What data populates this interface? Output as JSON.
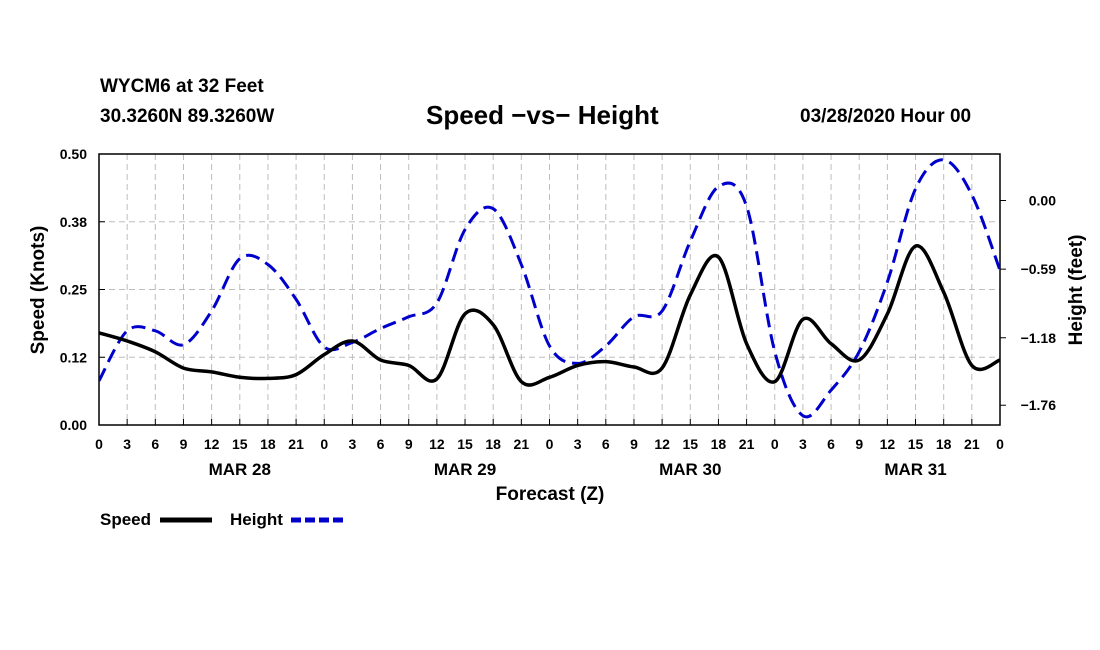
{
  "header": {
    "station": "WYCM6 at 32 Feet",
    "coords": "30.3260N 89.3260W",
    "title": "Speed −vs− Height",
    "datetime": "03/28/2020 Hour 00"
  },
  "chart_data": {
    "type": "line",
    "title": "Speed −vs− Height",
    "xlabel": "Forecast (Z)",
    "ylabel": "Speed (Knots)",
    "y2label": "Height (feet)",
    "xlim": [
      0,
      96
    ],
    "ylim": [
      0,
      0.5
    ],
    "y2lim": [
      -1.93,
      0.4
    ],
    "grid": true,
    "x_tick_labels": [
      "0",
      "3",
      "6",
      "9",
      "12",
      "15",
      "18",
      "21",
      "0",
      "3",
      "6",
      "9",
      "12",
      "15",
      "18",
      "21",
      "0",
      "3",
      "6",
      "9",
      "12",
      "15",
      "18",
      "21",
      "0",
      "3",
      "6",
      "9",
      "12",
      "15",
      "18",
      "21",
      "0"
    ],
    "date_labels": [
      "MAR 28",
      "MAR 29",
      "MAR 30",
      "MAR 31"
    ],
    "y_tick_labels": [
      "0.00",
      "0.12",
      "0.25",
      "0.38",
      "0.50"
    ],
    "y2_ticks": [
      0.0,
      -0.59,
      -1.18,
      -1.76
    ],
    "y2_tick_labels": [
      "0.00",
      "−0.59",
      "−1.18",
      "−1.76"
    ],
    "legend_position": "bottom-left",
    "series": [
      {
        "name": "Speed",
        "axis": "left",
        "color": "#000000",
        "style": "solid",
        "x": [
          0,
          3,
          6,
          9,
          12,
          15,
          18,
          21,
          24,
          27,
          30,
          33,
          36,
          39,
          42,
          45,
          48,
          51,
          54,
          57,
          60,
          63,
          66,
          69,
          72,
          75,
          78,
          81,
          84,
          87,
          90,
          93,
          96
        ],
        "values": [
          0.17,
          0.155,
          0.135,
          0.105,
          0.098,
          0.088,
          0.086,
          0.093,
          0.13,
          0.155,
          0.12,
          0.11,
          0.085,
          0.205,
          0.185,
          0.08,
          0.088,
          0.11,
          0.117,
          0.107,
          0.105,
          0.24,
          0.31,
          0.15,
          0.08,
          0.195,
          0.15,
          0.12,
          0.205,
          0.33,
          0.245,
          0.11,
          0.12
        ]
      },
      {
        "name": "Height",
        "axis": "right",
        "color": "#0000cc",
        "style": "dashed",
        "x": [
          0,
          3,
          6,
          9,
          12,
          15,
          18,
          21,
          24,
          27,
          30,
          33,
          36,
          39,
          42,
          45,
          48,
          51,
          54,
          57,
          60,
          63,
          66,
          69,
          72,
          75,
          78,
          81,
          84,
          87,
          90,
          93,
          96
        ],
        "values": [
          -1.55,
          -1.12,
          -1.12,
          -1.24,
          -0.95,
          -0.5,
          -0.55,
          -0.85,
          -1.26,
          -1.22,
          -1.1,
          -1.0,
          -0.88,
          -0.25,
          -0.07,
          -0.55,
          -1.25,
          -1.4,
          -1.25,
          -1.0,
          -0.95,
          -0.35,
          0.12,
          -0.05,
          -1.3,
          -1.85,
          -1.63,
          -1.3,
          -0.7,
          0.1,
          0.35,
          0.05,
          -0.6
        ]
      }
    ]
  }
}
